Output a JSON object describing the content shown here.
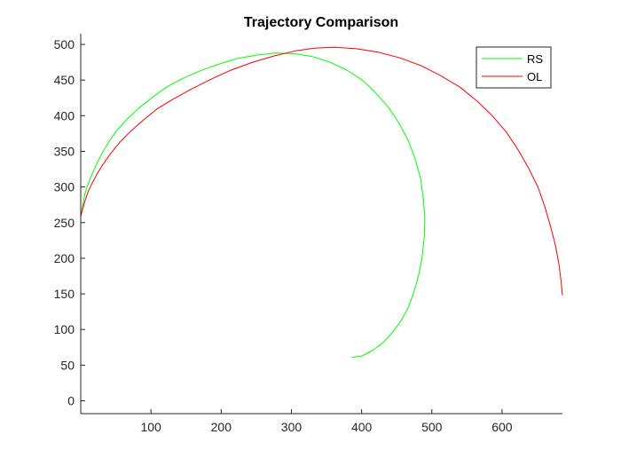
{
  "chart_data": {
    "type": "line",
    "title": "Trajectory Comparison",
    "xlabel": "",
    "ylabel": "",
    "xlim": [
      0,
      686
    ],
    "ylim": [
      -18,
      515
    ],
    "xticks": [
      100,
      200,
      300,
      400,
      500,
      600
    ],
    "yticks": [
      0,
      50,
      100,
      150,
      200,
      250,
      300,
      350,
      400,
      450,
      500
    ],
    "grid": false,
    "legend_position": "top-right",
    "series": [
      {
        "name": "RS",
        "color": "#00ff00",
        "x": [
          0,
          0,
          0,
          0,
          0,
          0,
          0,
          0,
          1,
          2,
          4,
          6,
          9,
          13,
          18,
          24,
          32,
          41,
          52,
          66,
          82,
          101,
          122,
          145,
          170,
          196,
          222,
          250,
          277,
          305,
          330,
          355,
          379,
          401,
          420,
          438,
          453,
          466,
          476,
          484,
          488,
          490,
          489,
          486,
          481,
          474,
          466,
          456,
          444,
          431,
          416,
          401,
          386
        ],
        "y": [
          0,
          25,
          50,
          100,
          150,
          200,
          240,
          258,
          262,
          270,
          280,
          290,
          300,
          310,
          322,
          335,
          350,
          365,
          380,
          395,
          410,
          425,
          440,
          452,
          463,
          472,
          480,
          485,
          488,
          487,
          483,
          475,
          464,
          450,
          432,
          412,
          390,
          366,
          340,
          312,
          283,
          255,
          228,
          200,
          175,
          151,
          130,
          112,
          96,
          82,
          71,
          63,
          61
        ]
      },
      {
        "name": "OL",
        "color": "#ff0000",
        "x": [
          0,
          0,
          0,
          0,
          0,
          0,
          0,
          0,
          1,
          3,
          6,
          10,
          16,
          23,
          32,
          42,
          55,
          70,
          88,
          108,
          131,
          157,
          185,
          214,
          245,
          276,
          306,
          334,
          362,
          393,
          424,
          455,
          485,
          513,
          540,
          564,
          586,
          606,
          623,
          638,
          651,
          661,
          669,
          676,
          681,
          684,
          686
        ],
        "y": [
          0,
          25,
          50,
          100,
          150,
          200,
          240,
          258,
          263,
          270,
          280,
          292,
          305,
          318,
          332,
          346,
          362,
          377,
          393,
          409,
          423,
          437,
          451,
          464,
          475,
          484,
          491,
          495,
          496,
          494,
          489,
          481,
          470,
          456,
          440,
          421,
          400,
          377,
          352,
          326,
          300,
          272,
          245,
          218,
          192,
          168,
          148
        ]
      }
    ]
  }
}
